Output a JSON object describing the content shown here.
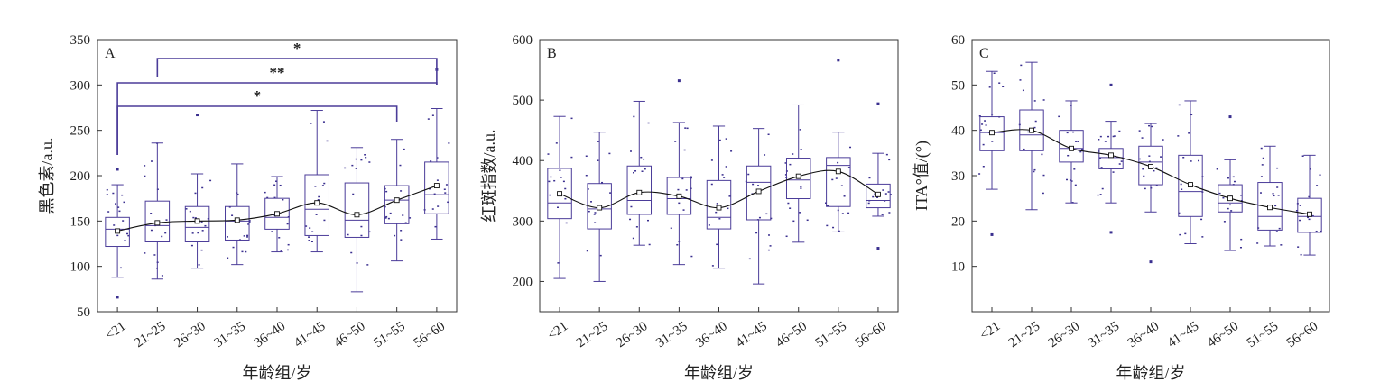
{
  "colors": {
    "box": "#4b3c99",
    "points": "#3a2f8f",
    "axis": "#333333",
    "trend": "#111111",
    "bracket": "#4b3c99"
  },
  "chart_data": [
    {
      "type": "box",
      "panel_label": "A",
      "ylabel": "黑色素/a.u.",
      "xlabel": "年龄组/岁",
      "categories": [
        "<21",
        "21~25",
        "26~30",
        "31~35",
        "36~40",
        "41~45",
        "46~50",
        "51~55",
        "56~60"
      ],
      "ylim": [
        50,
        350
      ],
      "yticks": [
        50,
        100,
        150,
        200,
        250,
        300,
        350
      ],
      "boxes": [
        {
          "min": 88,
          "q1": 122,
          "median": 141,
          "q3": 154,
          "max": 190
        },
        {
          "min": 86,
          "q1": 127,
          "median": 145,
          "q3": 172,
          "max": 236
        },
        {
          "min": 98,
          "q1": 127,
          "median": 143,
          "q3": 166,
          "max": 202
        },
        {
          "min": 102,
          "q1": 129,
          "median": 150,
          "q3": 166,
          "max": 213
        },
        {
          "min": 116,
          "q1": 141,
          "median": 154,
          "q3": 175,
          "max": 199
        },
        {
          "min": 116,
          "q1": 134,
          "median": 163,
          "q3": 201,
          "max": 272
        },
        {
          "min": 72,
          "q1": 132,
          "median": 151,
          "q3": 192,
          "max": 231
        },
        {
          "min": 106,
          "q1": 147,
          "median": 173,
          "q3": 189,
          "max": 240
        },
        {
          "min": 130,
          "q1": 158,
          "median": 179,
          "q3": 215,
          "max": 274
        }
      ],
      "means": [
        139,
        148,
        150,
        151,
        158,
        170,
        157,
        173,
        189
      ],
      "outliers": [
        {
          "category": "<21",
          "value": 207
        },
        {
          "category": "<21",
          "value": 66
        },
        {
          "category": "26~30",
          "value": 267
        },
        {
          "category": "56~60",
          "value": 317
        }
      ],
      "significance": [
        {
          "from": "21~25",
          "to": "56~60",
          "label": "*"
        },
        {
          "from": "<21",
          "to": "56~60",
          "label": "**"
        },
        {
          "from": "<21",
          "to": "51~55",
          "label": "*"
        }
      ]
    },
    {
      "type": "box",
      "panel_label": "B",
      "ylabel": "红斑指数/a.u.",
      "xlabel": "年龄组/岁",
      "categories": [
        "<21",
        "21~25",
        "26~30",
        "31~35",
        "36~40",
        "41~45",
        "46~50",
        "51~55",
        "56~60"
      ],
      "ylim": [
        150,
        600
      ],
      "yticks": [
        200,
        300,
        400,
        500,
        600
      ],
      "boxes": [
        {
          "min": 205,
          "q1": 304,
          "median": 330,
          "q3": 387,
          "max": 473
        },
        {
          "min": 200,
          "q1": 287,
          "median": 320,
          "q3": 362,
          "max": 447
        },
        {
          "min": 260,
          "q1": 311,
          "median": 334,
          "q3": 391,
          "max": 498
        },
        {
          "min": 228,
          "q1": 311,
          "median": 337,
          "q3": 372,
          "max": 463
        },
        {
          "min": 222,
          "q1": 287,
          "median": 306,
          "q3": 367,
          "max": 457
        },
        {
          "min": 196,
          "q1": 302,
          "median": 364,
          "q3": 391,
          "max": 453
        },
        {
          "min": 265,
          "q1": 337,
          "median": 368,
          "q3": 404,
          "max": 492
        },
        {
          "min": 282,
          "q1": 324,
          "median": 392,
          "q3": 405,
          "max": 447
        },
        {
          "min": 308,
          "q1": 322,
          "median": 334,
          "q3": 361,
          "max": 412
        }
      ],
      "means": [
        345,
        322,
        347,
        341,
        322,
        349,
        374,
        382,
        344
      ],
      "outliers": [
        {
          "category": "31~35",
          "value": 532
        },
        {
          "category": "51~55",
          "value": 566
        },
        {
          "category": "56~60",
          "value": 494
        },
        {
          "category": "56~60",
          "value": 255
        }
      ]
    },
    {
      "type": "box",
      "panel_label": "C",
      "ylabel": "ITA°值/(°)",
      "xlabel": "年龄组/岁",
      "categories": [
        "<21",
        "21~25",
        "26~30",
        "31~35",
        "36~40",
        "41~45",
        "46~50",
        "51~55",
        "56~60"
      ],
      "ylim": [
        0,
        60
      ],
      "yticks": [
        10,
        20,
        30,
        40,
        50,
        60
      ],
      "boxes": [
        {
          "min": 27,
          "q1": 35.5,
          "median": 39.5,
          "q3": 43,
          "max": 53
        },
        {
          "min": 22.5,
          "q1": 35.5,
          "median": 39,
          "q3": 44.5,
          "max": 55
        },
        {
          "min": 24,
          "q1": 33,
          "median": 36,
          "q3": 40,
          "max": 46.5
        },
        {
          "min": 24,
          "q1": 31.5,
          "median": 34,
          "q3": 36,
          "max": 42
        },
        {
          "min": 22,
          "q1": 28,
          "median": 33,
          "q3": 36.5,
          "max": 41.5
        },
        {
          "min": 15,
          "q1": 21,
          "median": 26.5,
          "q3": 34.5,
          "max": 46.5
        },
        {
          "min": 13.5,
          "q1": 22,
          "median": 24,
          "q3": 28,
          "max": 33.5
        },
        {
          "min": 14.5,
          "q1": 18,
          "median": 21,
          "q3": 28.5,
          "max": 36.5
        },
        {
          "min": 12.5,
          "q1": 17.5,
          "median": 21,
          "q3": 25,
          "max": 34.5
        }
      ],
      "means": [
        39.5,
        40,
        36,
        34.5,
        32,
        28,
        25,
        23,
        21.5
      ],
      "outliers": [
        {
          "category": "<21",
          "value": 17
        },
        {
          "category": "31~35",
          "value": 50
        },
        {
          "category": "31~35",
          "value": 17.5
        },
        {
          "category": "36~40",
          "value": 11
        },
        {
          "category": "46~50",
          "value": 43
        }
      ]
    }
  ]
}
